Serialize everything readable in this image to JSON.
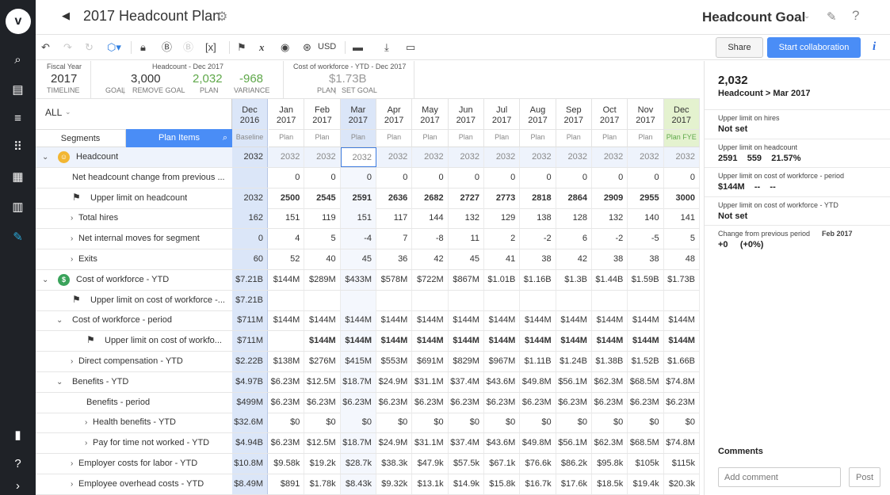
{
  "header": {
    "title": "2017 Headcount Plan",
    "goal_title": "Headcount Goal"
  },
  "icons": [
    "undo-icon",
    "redo-icon",
    "refresh-icon",
    "segment-icon",
    "lock-icon",
    "currency-icon",
    "budget-icon",
    "variable-icon",
    "flag-icon",
    "formula-icon",
    "eye-icon",
    "globe-icon",
    "comment-icon",
    "download-icon",
    "card-icon"
  ],
  "toolbar": {
    "currency": "USD",
    "share": "Share",
    "collaborate": "Start collaboration"
  },
  "summary": {
    "fiscal_year_label": "Fiscal Year",
    "fiscal_year": "2017",
    "timeline": "TIMELINE",
    "headcount_label": "Headcount - Dec 2017",
    "goal": "3,000",
    "plan": "2,032",
    "variance": "-968",
    "goal_caption": "GOAL",
    "remove_goal": "REMOVE GOAL",
    "plan_caption": "PLAN",
    "variance_caption": "VARIANCE",
    "cost_label": "Cost of workforce - YTD - Dec 2017",
    "cost_value": "$1.73B",
    "plan_caption2": "PLAN",
    "set_goal": "SET GOAL"
  },
  "grid": {
    "filter": "ALL",
    "tab_segments": "Segments",
    "tab_plan_items": "Plan Items",
    "baseline_col": {
      "month": "Dec",
      "year": "2016",
      "sub": "Baseline"
    },
    "months": [
      {
        "m": "Jan",
        "y": "2017",
        "s": "Plan"
      },
      {
        "m": "Feb",
        "y": "2017",
        "s": "Plan"
      },
      {
        "m": "Mar",
        "y": "2017",
        "s": "Plan"
      },
      {
        "m": "Apr",
        "y": "2017",
        "s": "Plan"
      },
      {
        "m": "May",
        "y": "2017",
        "s": "Plan"
      },
      {
        "m": "Jun",
        "y": "2017",
        "s": "Plan"
      },
      {
        "m": "Jul",
        "y": "2017",
        "s": "Plan"
      },
      {
        "m": "Aug",
        "y": "2017",
        "s": "Plan"
      },
      {
        "m": "Sep",
        "y": "2017",
        "s": "Plan"
      },
      {
        "m": "Oct",
        "y": "2017",
        "s": "Plan"
      },
      {
        "m": "Nov",
        "y": "2017",
        "s": "Plan"
      },
      {
        "m": "Dec",
        "y": "2017",
        "s": "Plan FYE"
      }
    ],
    "rows": [
      {
        "label": "Headcount",
        "chev": "⌄",
        "ind": 0,
        "icon": "headcount",
        "baseline": "2032",
        "values": [
          "2032",
          "2032",
          "2032",
          "2032",
          "2032",
          "2032",
          "2032",
          "2032",
          "2032",
          "2032",
          "2032",
          "2032"
        ],
        "grey": true
      },
      {
        "label": "Net headcount change from previous ...",
        "chev": "",
        "ind": 1,
        "baseline": "",
        "values": [
          "0",
          "0",
          "0",
          "0",
          "0",
          "0",
          "0",
          "0",
          "0",
          "0",
          "0",
          "0"
        ]
      },
      {
        "label": "Upper limit on headcount",
        "chev": "",
        "ind": 1,
        "icon": "flag",
        "baseline": "2032",
        "values": [
          "2500",
          "2545",
          "2591",
          "2636",
          "2682",
          "2727",
          "2773",
          "2818",
          "2864",
          "2909",
          "2955",
          "3000"
        ],
        "bold": true
      },
      {
        "label": "Total hires",
        "chev": "›",
        "ind": 1,
        "baseline": "162",
        "values": [
          "151",
          "119",
          "151",
          "117",
          "144",
          "132",
          "129",
          "138",
          "128",
          "132",
          "140",
          "141"
        ]
      },
      {
        "label": "Net internal moves for segment",
        "chev": "›",
        "ind": 1,
        "baseline": "0",
        "values": [
          "4",
          "5",
          "-4",
          "7",
          "-8",
          "11",
          "2",
          "-2",
          "6",
          "-2",
          "-5",
          "5"
        ]
      },
      {
        "label": "Exits",
        "chev": "›",
        "ind": 1,
        "baseline": "60",
        "values": [
          "52",
          "40",
          "45",
          "36",
          "42",
          "45",
          "41",
          "38",
          "42",
          "38",
          "38",
          "48"
        ]
      },
      {
        "label": "Cost of workforce - YTD",
        "chev": "⌄",
        "ind": 0,
        "icon": "cost",
        "baseline": "$7.21B",
        "values": [
          "$144M",
          "$289M",
          "$433M",
          "$578M",
          "$722M",
          "$867M",
          "$1.01B",
          "$1.16B",
          "$1.3B",
          "$1.44B",
          "$1.59B",
          "$1.73B"
        ]
      },
      {
        "label": "Upper limit on cost of workforce -...",
        "chev": "",
        "ind": 1,
        "icon": "flag",
        "baseline": "$7.21B",
        "values": [
          "",
          "",
          "",
          "",
          "",
          "",
          "",
          "",
          "",
          "",
          "",
          ""
        ]
      },
      {
        "label": "Cost of workforce - period",
        "chev": "⌄",
        "ind": 1,
        "baseline": "$711M",
        "values": [
          "$144M",
          "$144M",
          "$144M",
          "$144M",
          "$144M",
          "$144M",
          "$144M",
          "$144M",
          "$144M",
          "$144M",
          "$144M",
          "$144M"
        ]
      },
      {
        "label": "Upper limit on cost of workfo...",
        "chev": "",
        "ind": 2,
        "icon": "flag",
        "baseline": "$711M",
        "values": [
          "",
          "$144M",
          "$144M",
          "$144M",
          "$144M",
          "$144M",
          "$144M",
          "$144M",
          "$144M",
          "$144M",
          "$144M",
          "$144M"
        ],
        "bold": true
      },
      {
        "label": "Direct compensation - YTD",
        "chev": "›",
        "ind": 1,
        "baseline": "$2.22B",
        "values": [
          "$138M",
          "$276M",
          "$415M",
          "$553M",
          "$691M",
          "$829M",
          "$967M",
          "$1.11B",
          "$1.24B",
          "$1.38B",
          "$1.52B",
          "$1.66B"
        ]
      },
      {
        "label": "Benefits - YTD",
        "chev": "⌄",
        "ind": 1,
        "baseline": "$4.97B",
        "values": [
          "$6.23M",
          "$12.5M",
          "$18.7M",
          "$24.9M",
          "$31.1M",
          "$37.4M",
          "$43.6M",
          "$49.8M",
          "$56.1M",
          "$62.3M",
          "$68.5M",
          "$74.8M"
        ]
      },
      {
        "label": "Benefits - period",
        "chev": "",
        "ind": 2,
        "baseline": "$499M",
        "values": [
          "$6.23M",
          "$6.23M",
          "$6.23M",
          "$6.23M",
          "$6.23M",
          "$6.23M",
          "$6.23M",
          "$6.23M",
          "$6.23M",
          "$6.23M",
          "$6.23M",
          "$6.23M"
        ]
      },
      {
        "label": "Health benefits - YTD",
        "chev": "›",
        "ind": 2,
        "baseline": "$32.6M",
        "values": [
          "$0",
          "$0",
          "$0",
          "$0",
          "$0",
          "$0",
          "$0",
          "$0",
          "$0",
          "$0",
          "$0",
          "$0"
        ]
      },
      {
        "label": "Pay for time not worked - YTD",
        "chev": "›",
        "ind": 2,
        "baseline": "$4.94B",
        "values": [
          "$6.23M",
          "$12.5M",
          "$18.7M",
          "$24.9M",
          "$31.1M",
          "$37.4M",
          "$43.6M",
          "$49.8M",
          "$56.1M",
          "$62.3M",
          "$68.5M",
          "$74.8M"
        ]
      },
      {
        "label": "Employer costs for labor - YTD",
        "chev": "›",
        "ind": 1,
        "baseline": "$10.8M",
        "values": [
          "$9.58k",
          "$19.2k",
          "$28.7k",
          "$38.3k",
          "$47.9k",
          "$57.5k",
          "$67.1k",
          "$76.6k",
          "$86.2k",
          "$95.8k",
          "$105k",
          "$115k"
        ]
      },
      {
        "label": "Employee overhead costs - YTD",
        "chev": "›",
        "ind": 1,
        "baseline": "$8.49M",
        "values": [
          "$891",
          "$1.78k",
          "$8.43k",
          "$9.32k",
          "$13.1k",
          "$14.9k",
          "$15.8k",
          "$16.7k",
          "$17.6k",
          "$18.5k",
          "$19.4k",
          "$20.3k"
        ]
      }
    ]
  },
  "side": {
    "value": "2,032",
    "path": "Headcount > Mar 2017",
    "items": [
      {
        "t": "Upper limit on hires",
        "v": "Not set"
      },
      {
        "t": "Upper limit on headcount",
        "v": "2591    559    21.57%"
      },
      {
        "t": "Upper limit on cost of workforce - period",
        "v": "$144M    --    --"
      },
      {
        "t": "Upper limit on cost of workforce - YTD",
        "v": "Not set"
      },
      {
        "t": "Change from previous period",
        "t2": "Feb 2017",
        "v": "+0     (+0%)"
      }
    ],
    "comments": "Comments",
    "comment_placeholder": "Add comment",
    "post": "Post"
  }
}
